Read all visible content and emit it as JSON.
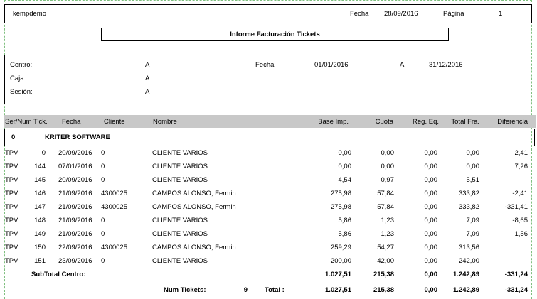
{
  "header": {
    "company": "kempdemo",
    "date_label": "Fecha",
    "date_value": "28/09/2016",
    "page_label": "Página",
    "page_value": "1"
  },
  "report_title": "Informe Facturación Tickets",
  "filters": {
    "centro_label": "Centro:",
    "centro_value": "A",
    "caja_label": "Caja:",
    "caja_value": "A",
    "sesion_label": "Sesión:",
    "sesion_value": "A",
    "fecha_label": "Fecha",
    "fecha_from": "01/01/2016",
    "fecha_sep": "A",
    "fecha_to": "31/12/2016"
  },
  "columns": {
    "sernum": "Ser/Num Tick.",
    "fecha": "Fecha",
    "cliente": "Cliente",
    "nombre": "Nombre",
    "base": "Base Imp.",
    "cuota": "Cuota",
    "regeq": "Reg. Eq.",
    "total": "Total Fra.",
    "diferencia": "Diferencia"
  },
  "group": {
    "code": "0",
    "name": "KRITER SOFTWARE"
  },
  "rows": [
    {
      "serie": "TPV",
      "num": "0",
      "fecha": "20/09/2016",
      "cliente": "0",
      "nombre": "CLIENTE VARIOS",
      "base": "0,00",
      "cuota": "0,00",
      "regeq": "0,00",
      "total": "0,00",
      "dif": "2,41"
    },
    {
      "serie": "TPV",
      "num": "144",
      "fecha": "07/01/2016",
      "cliente": "0",
      "nombre": "CLIENTE VARIOS",
      "base": "0,00",
      "cuota": "0,00",
      "regeq": "0,00",
      "total": "0,00",
      "dif": "7,26"
    },
    {
      "serie": "TPV",
      "num": "145",
      "fecha": "20/09/2016",
      "cliente": "0",
      "nombre": "CLIENTE VARIOS",
      "base": "4,54",
      "cuota": "0,97",
      "regeq": "0,00",
      "total": "5,51",
      "dif": ""
    },
    {
      "serie": "TPV",
      "num": "146",
      "fecha": "21/09/2016",
      "cliente": "4300025",
      "nombre": "CAMPOS ALONSO, Fermin",
      "base": "275,98",
      "cuota": "57,84",
      "regeq": "0,00",
      "total": "333,82",
      "dif": "-2,41"
    },
    {
      "serie": "TPV",
      "num": "147",
      "fecha": "21/09/2016",
      "cliente": "4300025",
      "nombre": "CAMPOS ALONSO, Fermin",
      "base": "275,98",
      "cuota": "57,84",
      "regeq": "0,00",
      "total": "333,82",
      "dif": "-331,41"
    },
    {
      "serie": "TPV",
      "num": "148",
      "fecha": "21/09/2016",
      "cliente": "0",
      "nombre": "CLIENTE VARIOS",
      "base": "5,86",
      "cuota": "1,23",
      "regeq": "0,00",
      "total": "7,09",
      "dif": "-8,65"
    },
    {
      "serie": "TPV",
      "num": "149",
      "fecha": "21/09/2016",
      "cliente": "0",
      "nombre": "CLIENTE VARIOS",
      "base": "5,86",
      "cuota": "1,23",
      "regeq": "0,00",
      "total": "7,09",
      "dif": "1,56"
    },
    {
      "serie": "TPV",
      "num": "150",
      "fecha": "22/09/2016",
      "cliente": "4300025",
      "nombre": "CAMPOS ALONSO, Fermin",
      "base": "259,29",
      "cuota": "54,27",
      "regeq": "0,00",
      "total": "313,56",
      "dif": ""
    },
    {
      "serie": "TPV",
      "num": "151",
      "fecha": "23/09/2016",
      "cliente": "0",
      "nombre": "CLIENTE VARIOS",
      "base": "200,00",
      "cuota": "42,00",
      "regeq": "0,00",
      "total": "242,00",
      "dif": ""
    }
  ],
  "subtotal": {
    "label": "SubTotal Centro:",
    "base": "1.027,51",
    "cuota": "215,38",
    "regeq": "0,00",
    "total": "1.242,89",
    "dif": "-331,24"
  },
  "grand_total": {
    "num_label": "Num Tickets:",
    "num_value": "9",
    "total_label": "Total :",
    "base": "1.027,51",
    "cuota": "215,38",
    "regeq": "0,00",
    "total": "1.242,89",
    "dif": "-331,24"
  }
}
